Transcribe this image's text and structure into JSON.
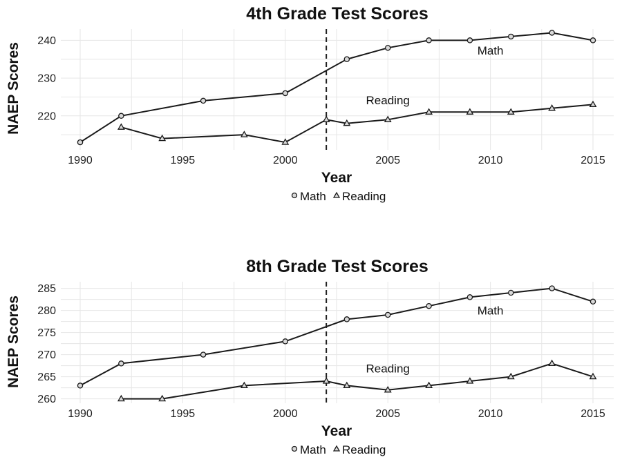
{
  "chart_data": [
    {
      "type": "line",
      "title": "4th Grade Test Scores",
      "xlabel": "Year",
      "ylabel": "NAEP Scores",
      "xlim": [
        1990,
        2015
      ],
      "ylim": [
        211,
        243
      ],
      "xticks": [
        1990,
        1995,
        2000,
        2005,
        2010,
        2015
      ],
      "yticks": [
        220,
        230,
        240
      ],
      "reference_line_x": 2002,
      "legend_position": "bottom",
      "series": [
        {
          "name": "Math",
          "marker": "circle",
          "x": [
            1990,
            1992,
            1996,
            2000,
            2003,
            2005,
            2007,
            2009,
            2011,
            2013,
            2015
          ],
          "y": [
            213,
            220,
            224,
            226,
            235,
            238,
            240,
            240,
            241,
            242,
            240
          ]
        },
        {
          "name": "Reading",
          "marker": "triangle",
          "x": [
            1992,
            1994,
            1998,
            2000,
            2002,
            2003,
            2005,
            2007,
            2009,
            2011,
            2013,
            2015
          ],
          "y": [
            217,
            214,
            215,
            213,
            219,
            218,
            219,
            221,
            221,
            221,
            222,
            223
          ]
        }
      ],
      "annotations": [
        {
          "text": "Math",
          "x": 2010,
          "y": 237.3
        },
        {
          "text": "Reading",
          "x": 2005,
          "y": 224.2
        }
      ]
    },
    {
      "type": "line",
      "title": "8th Grade Test Scores",
      "xlabel": "Year",
      "ylabel": "NAEP Scores",
      "xlim": [
        1990,
        2015
      ],
      "ylim": [
        259,
        286.5
      ],
      "xticks": [
        1990,
        1995,
        2000,
        2005,
        2010,
        2015
      ],
      "yticks": [
        260,
        265,
        270,
        275,
        280,
        285
      ],
      "reference_line_x": 2002,
      "legend_position": "bottom",
      "series": [
        {
          "name": "Math",
          "marker": "circle",
          "x": [
            1990,
            1992,
            1996,
            2000,
            2003,
            2005,
            2007,
            2009,
            2011,
            2013,
            2015
          ],
          "y": [
            263,
            268,
            270,
            273,
            278,
            279,
            281,
            283,
            284,
            285,
            282
          ]
        },
        {
          "name": "Reading",
          "marker": "triangle",
          "x": [
            1992,
            1994,
            1998,
            2002,
            2003,
            2005,
            2007,
            2009,
            2011,
            2013,
            2015
          ],
          "y": [
            260,
            260,
            263,
            264,
            263,
            262,
            263,
            264,
            265,
            268,
            265
          ]
        }
      ],
      "annotations": [
        {
          "text": "Math",
          "x": 2010,
          "y": 280
        },
        {
          "text": "Reading",
          "x": 2005,
          "y": 266.9
        }
      ]
    }
  ]
}
